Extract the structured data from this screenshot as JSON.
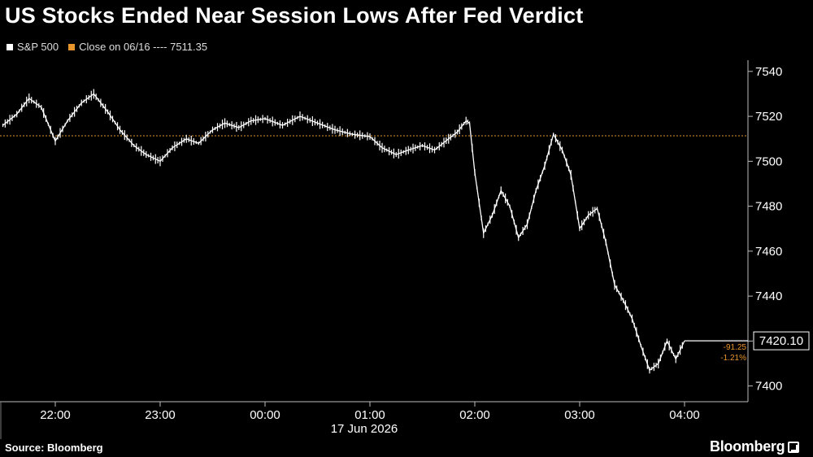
{
  "title": "US Stocks Ended Near Session Lows After Fed Verdict",
  "legend": {
    "series_label": "S&P 500",
    "series_color": "#ffffff",
    "close_label": "Close on 06/16 ---- 7511.35",
    "close_color": "#e8952b"
  },
  "source": "Source: Bloomberg",
  "brand": "Bloomberg",
  "chart_data": {
    "type": "line",
    "title": "US Stocks Ended Near Session Lows After Fed Verdict",
    "series": [
      {
        "name": "S&P 500",
        "x": [
          "21:30",
          "21:38",
          "21:45",
          "21:52",
          "22:00",
          "22:07",
          "22:15",
          "22:22",
          "22:30",
          "22:37",
          "22:45",
          "22:52",
          "23:00",
          "23:07",
          "23:15",
          "23:22",
          "23:30",
          "23:37",
          "23:45",
          "23:52",
          "00:00",
          "00:10",
          "00:20",
          "00:30",
          "00:40",
          "00:50",
          "01:00",
          "01:07",
          "01:15",
          "01:22",
          "01:30",
          "01:37",
          "01:45",
          "01:50",
          "01:55",
          "01:57",
          "02:00",
          "02:05",
          "02:10",
          "02:15",
          "02:20",
          "02:25",
          "02:30",
          "02:35",
          "02:40",
          "02:45",
          "02:50",
          "02:55",
          "03:00",
          "03:05",
          "03:10",
          "03:15",
          "03:20",
          "03:25",
          "03:30",
          "03:35",
          "03:40",
          "03:45",
          "03:50",
          "03:55",
          "04:00"
        ],
        "values": [
          7516,
          7521,
          7528,
          7524,
          7509,
          7518,
          7526,
          7530,
          7522,
          7514,
          7507,
          7503,
          7500,
          7506,
          7510,
          7508,
          7514,
          7517,
          7515,
          7518,
          7519,
          7516,
          7520,
          7517,
          7514,
          7512,
          7511,
          7506,
          7503,
          7505,
          7507,
          7505,
          7510,
          7513,
          7518,
          7517,
          7495,
          7468,
          7476,
          7487,
          7480,
          7466,
          7472,
          7487,
          7498,
          7512,
          7505,
          7494,
          7470,
          7476,
          7479,
          7464,
          7445,
          7438,
          7430,
          7418,
          7407,
          7410,
          7420,
          7412,
          7420.1
        ]
      },
      {
        "name": "Close on 06/16",
        "type": "reference",
        "value": 7511.35
      }
    ],
    "x_tick_labels": [
      "22:00",
      "23:00",
      "00:00",
      "01:00",
      "02:00",
      "03:00",
      "04:00"
    ],
    "x_sublabel": "17 Jun 2026",
    "y_ticks": [
      7400,
      7420,
      7440,
      7460,
      7480,
      7500,
      7520,
      7540
    ],
    "ylim": [
      7393,
      7545
    ],
    "last_value_label": "7420.10",
    "change_label": "-91.25",
    "change_pct_label": "-1.21%",
    "grid": false
  }
}
